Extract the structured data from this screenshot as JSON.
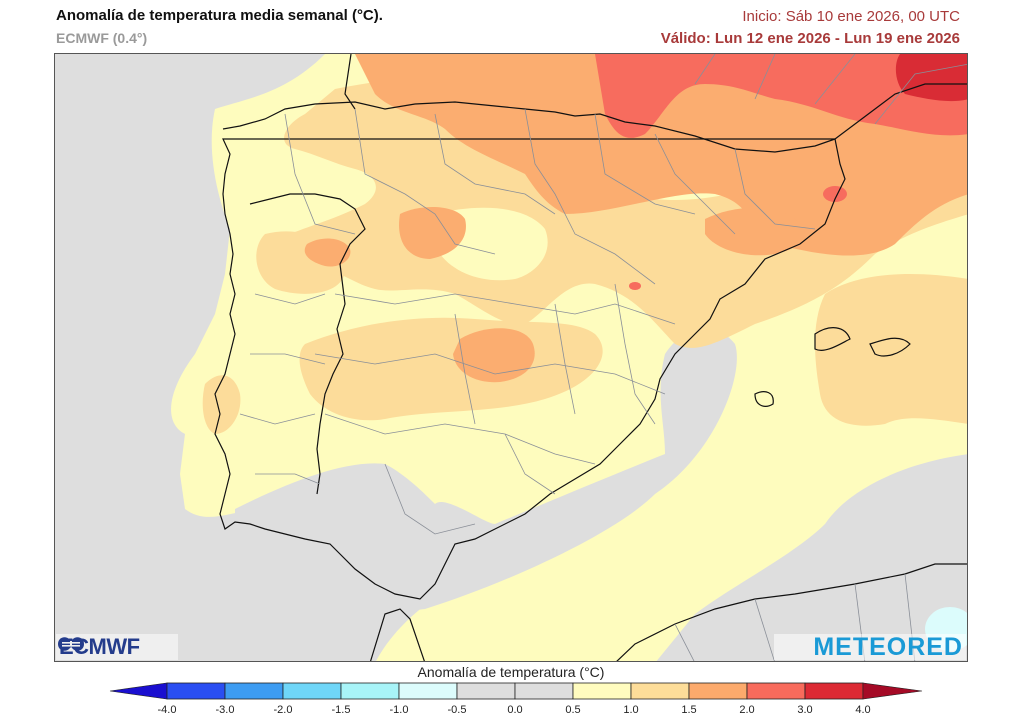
{
  "header": {
    "title": "Anomalía de temperatura media semanal (°C).",
    "subtitle": "ECMWF (0.4°)",
    "init": "Inicio: Sáb 10 ene 2026, 00 UTC",
    "valid": "Válido: Lun 12 ene 2026 - Lun 19 ene 2026"
  },
  "logos": {
    "left": "ECMWF",
    "right": "METEORED"
  },
  "legend": {
    "title": "Anomalía de temperatura (°C)",
    "ticks": [
      "-4.0",
      "-3.0",
      "-2.0",
      "-1.5",
      "-1.0",
      "-0.5",
      "0.0",
      "0.5",
      "1.0",
      "1.5",
      "2.0",
      "3.0",
      "4.0"
    ],
    "colors": {
      "below_min": "#1a0fd0",
      "bins": [
        "#2a4ef2",
        "#3d9cf2",
        "#6fd6f8",
        "#a8f4f8",
        "#dcfcfc",
        "#dedede",
        "#dedede",
        "#fffcbf",
        "#fddd99",
        "#fcaa6c",
        "#f86b5c",
        "#dc2a34"
      ],
      "above_max": "#a50a26"
    }
  },
  "map": {
    "colors": {
      "sea_neutral": "#dedede",
      "c05_10": "#fefcbe",
      "c10_15": "#fcdc9a",
      "c15_20": "#fbad70",
      "c20_30": "#f76c5e",
      "c30_40": "#d92c35",
      "cold_05": "#dcfcfc",
      "border": "#111111",
      "province": "#8a8f98"
    }
  }
}
